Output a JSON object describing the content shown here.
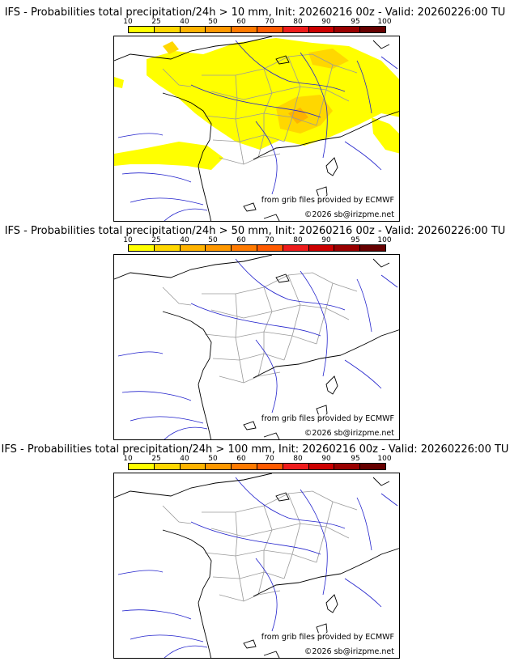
{
  "colorbar": {
    "ticks": [
      "10",
      "25",
      "40",
      "50",
      "60",
      "70",
      "80",
      "90",
      "95",
      "100"
    ],
    "colors": [
      "#ffff00",
      "#ffd700",
      "#ffb300",
      "#ff9800",
      "#ff7a00",
      "#ff5a00",
      "#ee1c1c",
      "#cc0000",
      "#990000",
      "#660000"
    ]
  },
  "panels": [
    {
      "title": "IFS - Probabilities total precipitation/24h > 10 mm, Init: 20260216 00z - Valid: 20260226:00 TU",
      "threshold_mm": 10,
      "has_precip_shading": true
    },
    {
      "title": "IFS - Probabilities total precipitation/24h > 50 mm, Init: 20260216 00z - Valid: 20260226:00 TU",
      "threshold_mm": 50,
      "has_precip_shading": false
    },
    {
      "title": "IFS - Probabilities total precipitation/24h > 100 mm, Init: 20260216 00z - Valid: 20260226:00 TU",
      "threshold_mm": 100,
      "has_precip_shading": false
    }
  ],
  "credits": {
    "source": "from grib files provided by ECMWF",
    "copyright": "©2026 sb@irizpme.net"
  },
  "colors": {
    "coastline": "#000000",
    "borders": "#9a9a9a",
    "rivers": "#2222cc",
    "precip_low": "#ffff00",
    "precip_mid": "#ffd700",
    "precip_high": "#ffb300"
  }
}
